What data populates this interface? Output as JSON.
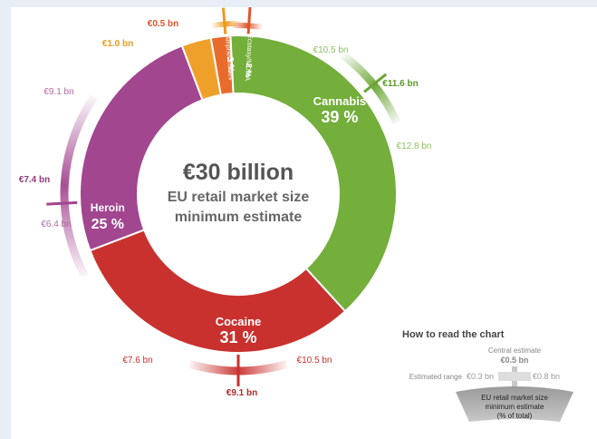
{
  "chart_data": {
    "type": "pie",
    "center": {
      "total": "€30 billion",
      "line1": "EU retail market size",
      "line2": "minimum estimate"
    },
    "segments": [
      {
        "name": "Cannabis",
        "percent": 39,
        "percent_label": "39 %",
        "central": "€11.6 bn",
        "low": "€10.5 bn",
        "high": "€12.8 bn",
        "color": "#74ae3b",
        "range_color": "#6aa534"
      },
      {
        "name": "Cocaine",
        "percent": 31,
        "percent_label": "31 %",
        "central": "€9.1 bn",
        "low": "€7.6 bn",
        "high": "€10.5 bn",
        "color": "#c8312e",
        "range_color": "#c8312e"
      },
      {
        "name": "Heroin",
        "percent": 25,
        "percent_label": "25 %",
        "central": "€7.4 bn",
        "low": "€6.4 bn",
        "high": "€9.1 bn",
        "color": "#a2468f",
        "range_color": "#a2468f"
      },
      {
        "name": "Amphetamines",
        "percent": 3,
        "percent_label": "3 %",
        "central": "€1.0 bn",
        "color": "#efa02b",
        "range_color": "#ee9a1e"
      },
      {
        "name": "Ecstasy/MDMA",
        "percent": 2,
        "percent_label": "2 %",
        "central": "€0.5 bn",
        "color": "#e86b2c",
        "range_color": "#e0542a"
      }
    ],
    "legend": {
      "title": "How to read the chart",
      "central_title": "Central estimate",
      "central_value": "€0.5 bn",
      "range_title": "Estimated range",
      "range_low": "€0.3 bn",
      "range_high": "€0.8 bn",
      "box_line1": "EU retail market size",
      "box_line2": "minimum estimate",
      "box_line3": "(% of total)"
    }
  }
}
